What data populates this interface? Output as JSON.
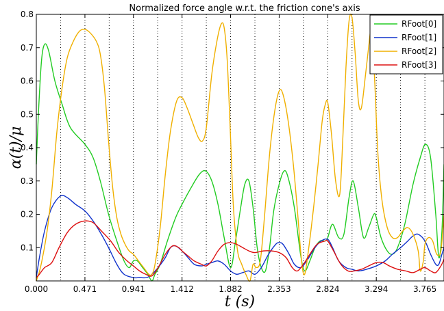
{
  "chart_data": {
    "type": "line",
    "title": "Normalized force angle w.r.t. the friction cone's axis",
    "xlabel": "t (s)",
    "ylabel": "α(t)/μ",
    "xlim": [
      0,
      3.95
    ],
    "ylim": [
      0.0,
      0.8
    ],
    "x_ticks": [
      "0.000",
      "0.471",
      "0.941",
      "1.412",
      "1.882",
      "2.353",
      "2.824",
      "3.294",
      "3.765"
    ],
    "x_tick_values": [
      0,
      0.471,
      0.941,
      1.412,
      1.882,
      2.353,
      2.824,
      3.294,
      3.765
    ],
    "y_ticks": [
      "0.1",
      "0.2",
      "0.3",
      "0.4",
      "0.5",
      "0.6",
      "0.7",
      "0.8"
    ],
    "y_tick_values": [
      0.1,
      0.2,
      0.3,
      0.4,
      0.5,
      0.6,
      0.7,
      0.8
    ],
    "vertical_gridlines": [
      0.235,
      0.471,
      0.706,
      0.941,
      1.176,
      1.412,
      1.647,
      1.882,
      2.118,
      2.353,
      2.588,
      2.824,
      3.059,
      3.294,
      3.529,
      3.765
    ],
    "grid": "vertical-dotted",
    "legend_position": "top-right",
    "series": [
      {
        "name": "RFoot[0]",
        "color": "#22cc22",
        "points": [
          [
            0.0,
            0.35
          ],
          [
            0.02,
            0.5
          ],
          [
            0.05,
            0.66
          ],
          [
            0.08,
            0.71
          ],
          [
            0.12,
            0.69
          ],
          [
            0.18,
            0.6
          ],
          [
            0.25,
            0.53
          ],
          [
            0.33,
            0.46
          ],
          [
            0.471,
            0.41
          ],
          [
            0.55,
            0.37
          ],
          [
            0.62,
            0.3
          ],
          [
            0.7,
            0.2
          ],
          [
            0.78,
            0.12
          ],
          [
            0.85,
            0.06
          ],
          [
            0.9,
            0.04
          ],
          [
            0.941,
            0.06
          ],
          [
            0.98,
            0.06
          ],
          [
            1.03,
            0.04
          ],
          [
            1.08,
            0.02
          ],
          [
            1.12,
            0.0
          ],
          [
            1.15,
            0.02
          ],
          [
            1.2,
            0.05
          ],
          [
            1.27,
            0.12
          ],
          [
            1.35,
            0.19
          ],
          [
            1.412,
            0.23
          ],
          [
            1.5,
            0.28
          ],
          [
            1.58,
            0.32
          ],
          [
            1.64,
            0.33
          ],
          [
            1.7,
            0.3
          ],
          [
            1.76,
            0.23
          ],
          [
            1.82,
            0.13
          ],
          [
            1.882,
            0.04
          ],
          [
            1.93,
            0.12
          ],
          [
            1.98,
            0.22
          ],
          [
            2.02,
            0.29
          ],
          [
            2.06,
            0.3
          ],
          [
            2.1,
            0.22
          ],
          [
            2.14,
            0.1
          ],
          [
            2.18,
            0.04
          ],
          [
            2.22,
            0.03
          ],
          [
            2.26,
            0.1
          ],
          [
            2.3,
            0.21
          ],
          [
            2.353,
            0.29
          ],
          [
            2.4,
            0.33
          ],
          [
            2.44,
            0.31
          ],
          [
            2.5,
            0.22
          ],
          [
            2.56,
            0.08
          ],
          [
            2.6,
            0.03
          ],
          [
            2.65,
            0.06
          ],
          [
            2.7,
            0.1
          ],
          [
            2.75,
            0.12
          ],
          [
            2.8,
            0.12
          ],
          [
            2.824,
            0.13
          ],
          [
            2.87,
            0.17
          ],
          [
            2.93,
            0.13
          ],
          [
            2.98,
            0.14
          ],
          [
            3.03,
            0.25
          ],
          [
            3.07,
            0.3
          ],
          [
            3.12,
            0.22
          ],
          [
            3.17,
            0.13
          ],
          [
            3.22,
            0.16
          ],
          [
            3.27,
            0.2
          ],
          [
            3.294,
            0.19
          ],
          [
            3.34,
            0.13
          ],
          [
            3.4,
            0.09
          ],
          [
            3.45,
            0.08
          ],
          [
            3.5,
            0.1
          ],
          [
            3.57,
            0.17
          ],
          [
            3.65,
            0.29
          ],
          [
            3.72,
            0.37
          ],
          [
            3.77,
            0.41
          ],
          [
            3.82,
            0.37
          ],
          [
            3.87,
            0.2
          ],
          [
            3.9,
            0.07
          ],
          [
            3.93,
            0.15
          ],
          [
            3.95,
            0.35
          ]
        ]
      },
      {
        "name": "RFoot[1]",
        "color": "#1133cc",
        "points": [
          [
            0.0,
            0.01
          ],
          [
            0.03,
            0.07
          ],
          [
            0.08,
            0.15
          ],
          [
            0.15,
            0.22
          ],
          [
            0.235,
            0.255
          ],
          [
            0.3,
            0.25
          ],
          [
            0.38,
            0.23
          ],
          [
            0.471,
            0.21
          ],
          [
            0.55,
            0.18
          ],
          [
            0.63,
            0.14
          ],
          [
            0.7,
            0.1
          ],
          [
            0.78,
            0.05
          ],
          [
            0.85,
            0.02
          ],
          [
            0.941,
            0.01
          ],
          [
            1.0,
            0.01
          ],
          [
            1.07,
            0.01
          ],
          [
            1.12,
            0.02
          ],
          [
            1.18,
            0.04
          ],
          [
            1.25,
            0.07
          ],
          [
            1.3,
            0.1
          ],
          [
            1.35,
            0.105
          ],
          [
            1.412,
            0.09
          ],
          [
            1.47,
            0.07
          ],
          [
            1.53,
            0.05
          ],
          [
            1.6,
            0.045
          ],
          [
            1.647,
            0.05
          ],
          [
            1.7,
            0.055
          ],
          [
            1.76,
            0.06
          ],
          [
            1.82,
            0.05
          ],
          [
            1.882,
            0.03
          ],
          [
            1.94,
            0.02
          ],
          [
            2.0,
            0.025
          ],
          [
            2.06,
            0.03
          ],
          [
            2.118,
            0.02
          ],
          [
            2.18,
            0.04
          ],
          [
            2.25,
            0.08
          ],
          [
            2.32,
            0.11
          ],
          [
            2.353,
            0.115
          ],
          [
            2.39,
            0.11
          ],
          [
            2.45,
            0.08
          ],
          [
            2.5,
            0.05
          ],
          [
            2.56,
            0.04
          ],
          [
            2.62,
            0.06
          ],
          [
            2.7,
            0.1
          ],
          [
            2.76,
            0.12
          ],
          [
            2.824,
            0.125
          ],
          [
            2.87,
            0.1
          ],
          [
            2.93,
            0.06
          ],
          [
            3.0,
            0.04
          ],
          [
            3.059,
            0.035
          ],
          [
            3.12,
            0.03
          ],
          [
            3.2,
            0.035
          ],
          [
            3.294,
            0.045
          ],
          [
            3.38,
            0.06
          ],
          [
            3.45,
            0.08
          ],
          [
            3.53,
            0.1
          ],
          [
            3.6,
            0.12
          ],
          [
            3.65,
            0.135
          ],
          [
            3.7,
            0.14
          ],
          [
            3.765,
            0.12
          ],
          [
            3.82,
            0.08
          ],
          [
            3.87,
            0.05
          ],
          [
            3.9,
            0.05
          ],
          [
            3.93,
            0.08
          ],
          [
            3.95,
            0.1
          ]
        ]
      },
      {
        "name": "RFoot[2]",
        "color": "#f0b000",
        "points": [
          [
            0.0,
            0.0
          ],
          [
            0.04,
            0.04
          ],
          [
            0.1,
            0.14
          ],
          [
            0.15,
            0.27
          ],
          [
            0.2,
            0.45
          ],
          [
            0.25,
            0.58
          ],
          [
            0.3,
            0.67
          ],
          [
            0.36,
            0.72
          ],
          [
            0.42,
            0.75
          ],
          [
            0.471,
            0.755
          ],
          [
            0.52,
            0.745
          ],
          [
            0.58,
            0.72
          ],
          [
            0.62,
            0.68
          ],
          [
            0.66,
            0.58
          ],
          [
            0.7,
            0.42
          ],
          [
            0.74,
            0.28
          ],
          [
            0.78,
            0.19
          ],
          [
            0.82,
            0.14
          ],
          [
            0.86,
            0.11
          ],
          [
            0.9,
            0.09
          ],
          [
            0.941,
            0.08
          ],
          [
            0.99,
            0.06
          ],
          [
            1.04,
            0.04
          ],
          [
            1.09,
            0.02
          ],
          [
            1.12,
            0.02
          ],
          [
            1.15,
            0.05
          ],
          [
            1.2,
            0.16
          ],
          [
            1.25,
            0.32
          ],
          [
            1.3,
            0.45
          ],
          [
            1.36,
            0.54
          ],
          [
            1.412,
            0.55
          ],
          [
            1.46,
            0.52
          ],
          [
            1.52,
            0.47
          ],
          [
            1.57,
            0.43
          ],
          [
            1.61,
            0.42
          ],
          [
            1.647,
            0.46
          ],
          [
            1.7,
            0.62
          ],
          [
            1.75,
            0.72
          ],
          [
            1.79,
            0.77
          ],
          [
            1.82,
            0.76
          ],
          [
            1.85,
            0.66
          ],
          [
            1.882,
            0.43
          ],
          [
            1.91,
            0.22
          ],
          [
            1.95,
            0.09
          ],
          [
            1.99,
            0.05
          ],
          [
            2.03,
            0.02
          ],
          [
            2.07,
            0.0
          ],
          [
            2.1,
            0.05
          ],
          [
            2.13,
            0.04
          ],
          [
            2.17,
            0.06
          ],
          [
            2.21,
            0.19
          ],
          [
            2.26,
            0.38
          ],
          [
            2.31,
            0.51
          ],
          [
            2.353,
            0.57
          ],
          [
            2.39,
            0.56
          ],
          [
            2.44,
            0.48
          ],
          [
            2.49,
            0.35
          ],
          [
            2.53,
            0.21
          ],
          [
            2.57,
            0.06
          ],
          [
            2.6,
            0.02
          ],
          [
            2.64,
            0.1
          ],
          [
            2.69,
            0.23
          ],
          [
            2.73,
            0.35
          ],
          [
            2.77,
            0.48
          ],
          [
            2.8,
            0.53
          ],
          [
            2.824,
            0.535
          ],
          [
            2.86,
            0.44
          ],
          [
            2.9,
            0.3
          ],
          [
            2.94,
            0.26
          ],
          [
            2.97,
            0.43
          ],
          [
            3.0,
            0.64
          ],
          [
            3.03,
            0.78
          ],
          [
            3.059,
            0.79
          ],
          [
            3.09,
            0.68
          ],
          [
            3.12,
            0.54
          ],
          [
            3.15,
            0.52
          ],
          [
            3.19,
            0.62
          ],
          [
            3.23,
            0.73
          ],
          [
            3.25,
            0.77
          ],
          [
            3.28,
            0.59
          ],
          [
            3.31,
            0.38
          ],
          [
            3.35,
            0.24
          ],
          [
            3.4,
            0.16
          ],
          [
            3.45,
            0.13
          ],
          [
            3.5,
            0.13
          ],
          [
            3.55,
            0.15
          ],
          [
            3.6,
            0.16
          ],
          [
            3.65,
            0.14
          ],
          [
            3.7,
            0.09
          ],
          [
            3.72,
            0.03
          ],
          [
            3.75,
            0.06
          ],
          [
            3.765,
            0.11
          ],
          [
            3.8,
            0.13
          ],
          [
            3.84,
            0.12
          ],
          [
            3.88,
            0.08
          ],
          [
            3.92,
            0.09
          ],
          [
            3.95,
            0.2
          ]
        ]
      },
      {
        "name": "RFoot[3]",
        "color": "#dd1111",
        "points": [
          [
            0.0,
            0.01
          ],
          [
            0.03,
            0.02
          ],
          [
            0.08,
            0.04
          ],
          [
            0.15,
            0.055
          ],
          [
            0.22,
            0.1
          ],
          [
            0.3,
            0.145
          ],
          [
            0.38,
            0.17
          ],
          [
            0.471,
            0.18
          ],
          [
            0.55,
            0.175
          ],
          [
            0.63,
            0.15
          ],
          [
            0.72,
            0.12
          ],
          [
            0.8,
            0.085
          ],
          [
            0.88,
            0.06
          ],
          [
            0.941,
            0.045
          ],
          [
            1.0,
            0.03
          ],
          [
            1.06,
            0.02
          ],
          [
            1.12,
            0.015
          ],
          [
            1.18,
            0.04
          ],
          [
            1.25,
            0.08
          ],
          [
            1.32,
            0.105
          ],
          [
            1.38,
            0.1
          ],
          [
            1.412,
            0.09
          ],
          [
            1.47,
            0.075
          ],
          [
            1.53,
            0.06
          ],
          [
            1.6,
            0.05
          ],
          [
            1.647,
            0.045
          ],
          [
            1.7,
            0.06
          ],
          [
            1.76,
            0.09
          ],
          [
            1.82,
            0.11
          ],
          [
            1.882,
            0.115
          ],
          [
            1.94,
            0.11
          ],
          [
            2.0,
            0.1
          ],
          [
            2.06,
            0.09
          ],
          [
            2.118,
            0.085
          ],
          [
            2.2,
            0.09
          ],
          [
            2.28,
            0.09
          ],
          [
            2.353,
            0.085
          ],
          [
            2.42,
            0.07
          ],
          [
            2.48,
            0.04
          ],
          [
            2.53,
            0.03
          ],
          [
            2.588,
            0.05
          ],
          [
            2.65,
            0.08
          ],
          [
            2.72,
            0.11
          ],
          [
            2.8,
            0.12
          ],
          [
            2.824,
            0.12
          ],
          [
            2.88,
            0.09
          ],
          [
            2.95,
            0.05
          ],
          [
            3.02,
            0.03
          ],
          [
            3.08,
            0.03
          ],
          [
            3.15,
            0.035
          ],
          [
            3.22,
            0.045
          ],
          [
            3.294,
            0.055
          ],
          [
            3.36,
            0.055
          ],
          [
            3.42,
            0.045
          ],
          [
            3.5,
            0.035
          ],
          [
            3.58,
            0.03
          ],
          [
            3.65,
            0.025
          ],
          [
            3.72,
            0.035
          ],
          [
            3.765,
            0.04
          ],
          [
            3.82,
            0.03
          ],
          [
            3.87,
            0.025
          ],
          [
            3.92,
            0.045
          ],
          [
            3.95,
            0.065
          ]
        ]
      }
    ]
  }
}
